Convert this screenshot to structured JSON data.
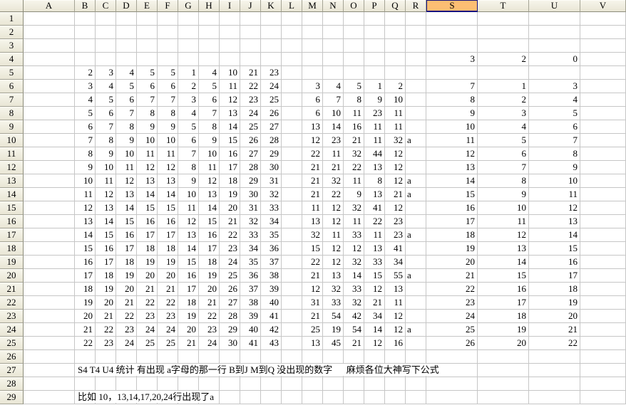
{
  "app": {
    "type": "spreadsheet-grid",
    "selected_column": "S",
    "colors": {
      "selected_header_bg": "#FCBE73",
      "selected_header_border": "#14127E",
      "header_bg": "#EFEDE0",
      "gridline": "#C6C6C6"
    }
  },
  "sheet": {
    "columns": [
      "A",
      "B",
      "C",
      "D",
      "E",
      "F",
      "G",
      "H",
      "I",
      "J",
      "K",
      "L",
      "M",
      "N",
      "O",
      "P",
      "Q",
      "R",
      "S",
      "T",
      "U",
      "V"
    ],
    "row_labels": [
      "1",
      "2",
      "3",
      "4",
      "5",
      "6",
      "7",
      "8",
      "9",
      "10",
      "11",
      "12",
      "13",
      "14",
      "15",
      "16",
      "17",
      "18",
      "19",
      "20",
      "21",
      "22",
      "23",
      "24",
      "25",
      "26",
      "27",
      "28",
      "29"
    ],
    "cells": {
      "S4": "3",
      "T4": "2",
      "U4": "0",
      "B5": "2",
      "C5": "3",
      "D5": "4",
      "E5": "5",
      "F5": "5",
      "G5": "1",
      "H5": "4",
      "I5": "10",
      "J5": "21",
      "K5": "23",
      "B6": "3",
      "C6": "4",
      "D6": "5",
      "E6": "6",
      "F6": "6",
      "G6": "2",
      "H6": "5",
      "I6": "11",
      "J6": "22",
      "K6": "24",
      "M6": "3",
      "N6": "4",
      "O6": "5",
      "P6": "1",
      "Q6": "2",
      "S6": "7",
      "T6": "1",
      "U6": "3",
      "B7": "4",
      "C7": "5",
      "D7": "6",
      "E7": "7",
      "F7": "7",
      "G7": "3",
      "H7": "6",
      "I7": "12",
      "J7": "23",
      "K7": "25",
      "M7": "6",
      "N7": "7",
      "O7": "8",
      "P7": "9",
      "Q7": "10",
      "S7": "8",
      "T7": "2",
      "U7": "4",
      "B8": "5",
      "C8": "6",
      "D8": "7",
      "E8": "8",
      "F8": "8",
      "G8": "4",
      "H8": "7",
      "I8": "13",
      "J8": "24",
      "K8": "26",
      "M8": "6",
      "N8": "10",
      "O8": "11",
      "P8": "23",
      "Q8": "11",
      "S8": "9",
      "T8": "3",
      "U8": "5",
      "B9": "6",
      "C9": "7",
      "D9": "8",
      "E9": "9",
      "F9": "9",
      "G9": "5",
      "H9": "8",
      "I9": "14",
      "J9": "25",
      "K9": "27",
      "M9": "13",
      "N9": "14",
      "O9": "16",
      "P9": "11",
      "Q9": "11",
      "S9": "10",
      "T9": "4",
      "U9": "6",
      "B10": "7",
      "C10": "8",
      "D10": "9",
      "E10": "10",
      "F10": "10",
      "G10": "6",
      "H10": "9",
      "I10": "15",
      "J10": "26",
      "K10": "28",
      "M10": "12",
      "N10": "23",
      "O10": "21",
      "P10": "11",
      "Q10": "32",
      "R10": "a",
      "S10": "11",
      "T10": "5",
      "U10": "7",
      "B11": "8",
      "C11": "9",
      "D11": "10",
      "E11": "11",
      "F11": "11",
      "G11": "7",
      "H11": "10",
      "I11": "16",
      "J11": "27",
      "K11": "29",
      "M11": "22",
      "N11": "11",
      "O11": "32",
      "P11": "44",
      "Q11": "12",
      "S11": "12",
      "T11": "6",
      "U11": "8",
      "B12": "9",
      "C12": "10",
      "D12": "11",
      "E12": "12",
      "F12": "12",
      "G12": "8",
      "H12": "11",
      "I12": "17",
      "J12": "28",
      "K12": "30",
      "M12": "21",
      "N12": "21",
      "O12": "22",
      "P12": "13",
      "Q12": "12",
      "S12": "13",
      "T12": "7",
      "U12": "9",
      "B13": "10",
      "C13": "11",
      "D13": "12",
      "E13": "13",
      "F13": "13",
      "G13": "9",
      "H13": "12",
      "I13": "18",
      "J13": "29",
      "K13": "31",
      "M13": "21",
      "N13": "32",
      "O13": "11",
      "P13": "8",
      "Q13": "12",
      "R13": "a",
      "S13": "14",
      "T13": "8",
      "U13": "10",
      "B14": "11",
      "C14": "12",
      "D14": "13",
      "E14": "14",
      "F14": "14",
      "G14": "10",
      "H14": "13",
      "I14": "19",
      "J14": "30",
      "K14": "32",
      "M14": "21",
      "N14": "22",
      "O14": "9",
      "P14": "13",
      "Q14": "21",
      "R14": "a",
      "S14": "15",
      "T14": "9",
      "U14": "11",
      "B15": "12",
      "C15": "13",
      "D15": "14",
      "E15": "15",
      "F15": "15",
      "G15": "11",
      "H15": "14",
      "I15": "20",
      "J15": "31",
      "K15": "33",
      "M15": "11",
      "N15": "12",
      "O15": "32",
      "P15": "41",
      "Q15": "12",
      "S15": "16",
      "T15": "10",
      "U15": "12",
      "B16": "13",
      "C16": "14",
      "D16": "15",
      "E16": "16",
      "F16": "16",
      "G16": "12",
      "H16": "15",
      "I16": "21",
      "J16": "32",
      "K16": "34",
      "M16": "13",
      "N16": "12",
      "O16": "11",
      "P16": "22",
      "Q16": "23",
      "S16": "17",
      "T16": "11",
      "U16": "13",
      "B17": "14",
      "C17": "15",
      "D17": "16",
      "E17": "17",
      "F17": "17",
      "G17": "13",
      "H17": "16",
      "I17": "22",
      "J17": "33",
      "K17": "35",
      "M17": "32",
      "N17": "11",
      "O17": "33",
      "P17": "11",
      "Q17": "23",
      "R17": "a",
      "S17": "18",
      "T17": "12",
      "U17": "14",
      "B18": "15",
      "C18": "16",
      "D18": "17",
      "E18": "18",
      "F18": "18",
      "G18": "14",
      "H18": "17",
      "I18": "23",
      "J18": "34",
      "K18": "36",
      "M18": "15",
      "N18": "12",
      "O18": "12",
      "P18": "13",
      "Q18": "41",
      "S18": "19",
      "T18": "13",
      "U18": "15",
      "B19": "16",
      "C19": "17",
      "D19": "18",
      "E19": "19",
      "F19": "19",
      "G19": "15",
      "H19": "18",
      "I19": "24",
      "J19": "35",
      "K19": "37",
      "M19": "22",
      "N19": "12",
      "O19": "32",
      "P19": "33",
      "Q19": "34",
      "S19": "20",
      "T19": "14",
      "U19": "16",
      "B20": "17",
      "C20": "18",
      "D20": "19",
      "E20": "20",
      "F20": "20",
      "G20": "16",
      "H20": "19",
      "I20": "25",
      "J20": "36",
      "K20": "38",
      "M20": "21",
      "N20": "13",
      "O20": "14",
      "P20": "15",
      "Q20": "55",
      "R20": "a",
      "S20": "21",
      "T20": "15",
      "U20": "17",
      "B21": "18",
      "C21": "19",
      "D21": "20",
      "E21": "21",
      "F21": "21",
      "G21": "17",
      "H21": "20",
      "I21": "26",
      "J21": "37",
      "K21": "39",
      "M21": "12",
      "N21": "32",
      "O21": "33",
      "P21": "12",
      "Q21": "13",
      "S21": "22",
      "T21": "16",
      "U21": "18",
      "B22": "19",
      "C22": "20",
      "D22": "21",
      "E22": "22",
      "F22": "22",
      "G22": "18",
      "H22": "21",
      "I22": "27",
      "J22": "38",
      "K22": "40",
      "M22": "31",
      "N22": "33",
      "O22": "32",
      "P22": "21",
      "Q22": "11",
      "S22": "23",
      "T22": "17",
      "U22": "19",
      "B23": "20",
      "C23": "21",
      "D23": "22",
      "E23": "23",
      "F23": "23",
      "G23": "19",
      "H23": "22",
      "I23": "28",
      "J23": "39",
      "K23": "41",
      "M23": "21",
      "N23": "54",
      "O23": "42",
      "P23": "34",
      "Q23": "12",
      "S23": "24",
      "T23": "18",
      "U23": "20",
      "B24": "21",
      "C24": "22",
      "D24": "23",
      "E24": "24",
      "F24": "24",
      "G24": "20",
      "H24": "23",
      "I24": "29",
      "J24": "40",
      "K24": "42",
      "M24": "25",
      "N24": "19",
      "O24": "54",
      "P24": "14",
      "Q24": "12",
      "R24": "a",
      "S24": "25",
      "T24": "19",
      "U24": "21",
      "B25": "22",
      "C25": "23",
      "D25": "24",
      "E25": "25",
      "F25": "25",
      "G25": "21",
      "H25": "24",
      "I25": "30",
      "J25": "41",
      "K25": "43",
      "M25": "13",
      "N25": "45",
      "O25": "21",
      "P25": "12",
      "Q25": "16",
      "S25": "26",
      "T25": "20",
      "U25": "22",
      "B27": "S4 T4 U4 统计 有出现 a字母的那一行 B到J M到Q 没出现的数字      麻烦各位大神写下公式",
      "B29": "比如 10，13,14,17,20,24行出现了a"
    }
  }
}
